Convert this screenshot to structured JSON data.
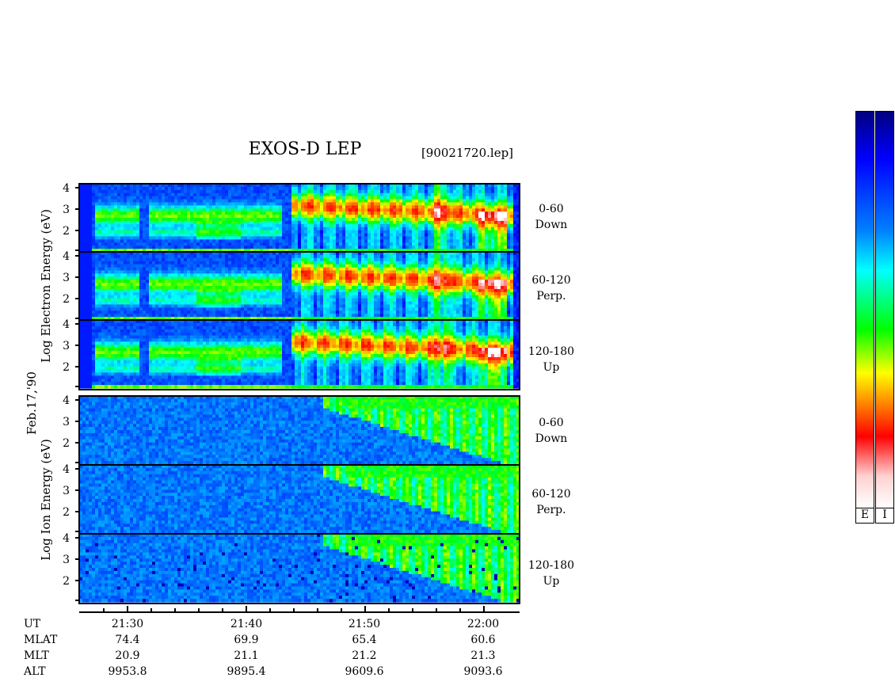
{
  "header": {
    "title": "EXOS-D LEP",
    "filename": "[90021720.lep]"
  },
  "left_labels": {
    "date": "Feb.17,'90",
    "electron_label": "Log  Electron  Energy (eV)",
    "ion_label": "Log  Ion  Energy (eV)"
  },
  "chart_data": {
    "type": "heatmap",
    "title": "EXOS-D LEP",
    "panels": [
      {
        "species": "Electron",
        "pitch_angle": "0-60",
        "direction": "Down"
      },
      {
        "species": "Electron",
        "pitch_angle": "60-120",
        "direction": "Perp."
      },
      {
        "species": "Electron",
        "pitch_angle": "120-180",
        "direction": "Up"
      },
      {
        "species": "Ion",
        "pitch_angle": "0-60",
        "direction": "Down"
      },
      {
        "species": "Ion",
        "pitch_angle": "60-120",
        "direction": "Perp."
      },
      {
        "species": "Ion",
        "pitch_angle": "120-180",
        "direction": "Up"
      }
    ],
    "yticks": [
      "4",
      "3",
      "2"
    ],
    "ylabel": "Log Energy (eV)",
    "x_axis": {
      "ut": [
        "21:30",
        "21:40",
        "21:50",
        "22:00"
      ],
      "mlat": [
        "74.4",
        "69.9",
        "65.4",
        "60.6"
      ],
      "mlt": [
        "20.9",
        "21.1",
        "21.2",
        "21.3"
      ],
      "alt": [
        "9953.8",
        "9895.4",
        "9609.6",
        "9093.6"
      ]
    },
    "footer_keys": [
      "UT",
      "MLAT",
      "MLT",
      "ALT"
    ],
    "colorbars": [
      "E",
      "I"
    ],
    "colormap": [
      "#ffffff",
      "#ff0000",
      "#ff8000",
      "#ffff00",
      "#00ff00",
      "#00ffff",
      "#0080ff",
      "#0000ff",
      "#000080"
    ]
  }
}
